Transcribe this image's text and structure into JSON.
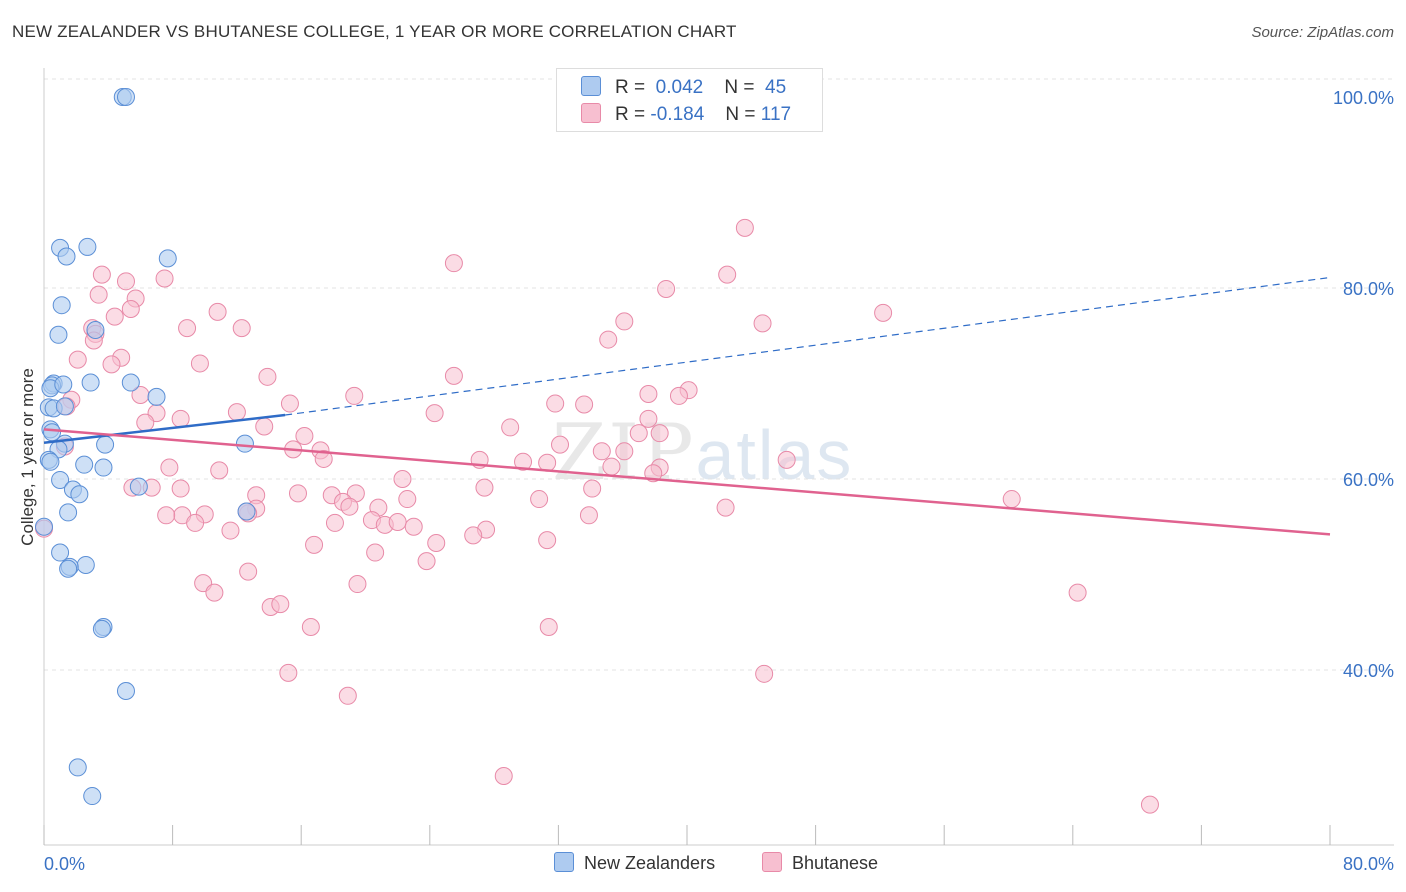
{
  "title": "NEW ZEALANDER VS BHUTANESE COLLEGE, 1 YEAR OR MORE CORRELATION CHART",
  "source": "Source: ZipAtlas.com",
  "watermark": {
    "zip": "ZIP",
    "atlas": "atlas"
  },
  "legend": [
    {
      "r_label": "R =",
      "r_value": "0.042",
      "n_label": "N =",
      "n_value": "45"
    },
    {
      "r_label": "R =",
      "r_value": "-0.184",
      "n_label": "N =",
      "n_value": "117"
    }
  ],
  "bottom_legend": {
    "series1": "New Zealanders",
    "series2": "Bhutanese"
  },
  "colors": {
    "blue_fill": "#aecbf0",
    "blue_stroke": "#5b8fd6",
    "blue_line": "#2f6cc7",
    "pink_fill": "#f7bfd0",
    "pink_stroke": "#e88aa8",
    "pink_line": "#e0628f",
    "axis_text": "#3a72c4"
  },
  "chart_data": {
    "type": "scatter",
    "title": "NEW ZEALANDER VS BHUTANESE COLLEGE, 1 YEAR OR MORE CORRELATION CHART",
    "xlabel": "",
    "ylabel": "College, 1 year or more",
    "xlim": [
      0,
      80
    ],
    "ylim": [
      22,
      102
    ],
    "x_tick_labels": [
      "0.0%",
      "80.0%"
    ],
    "y_tick_values": [
      40,
      60,
      80,
      100
    ],
    "y_tick_labels": [
      "40.0%",
      "60.0%",
      "80.0%",
      "100.0%"
    ],
    "series": [
      {
        "name": "New Zealanders",
        "R": 0.042,
        "N": 45,
        "trend": {
          "solid_x": [
            0,
            15
          ],
          "solid_y": [
            63.8,
            66.7
          ],
          "dashed_x": [
            15,
            80
          ],
          "dashed_y": [
            66.7,
            81.1
          ]
        },
        "points": [
          [
            4.9,
            100
          ],
          [
            5.1,
            100
          ],
          [
            1.0,
            84.2
          ],
          [
            2.7,
            84.3
          ],
          [
            1.4,
            83.3
          ],
          [
            7.7,
            83.1
          ],
          [
            1.1,
            78.2
          ],
          [
            0.9,
            75.1
          ],
          [
            3.2,
            75.6
          ],
          [
            0.6,
            70.0
          ],
          [
            0.5,
            69.8
          ],
          [
            0.4,
            69.5
          ],
          [
            1.2,
            69.9
          ],
          [
            2.9,
            70.1
          ],
          [
            5.4,
            70.1
          ],
          [
            7.0,
            68.6
          ],
          [
            0.3,
            67.5
          ],
          [
            0.6,
            67.4
          ],
          [
            1.3,
            67.6
          ],
          [
            0.4,
            65.2
          ],
          [
            0.5,
            64.9
          ],
          [
            1.3,
            63.7
          ],
          [
            0.9,
            63.1
          ],
          [
            3.8,
            63.6
          ],
          [
            12.5,
            63.7
          ],
          [
            0.3,
            62.0
          ],
          [
            0.4,
            61.8
          ],
          [
            2.5,
            61.5
          ],
          [
            3.7,
            61.2
          ],
          [
            1.0,
            59.9
          ],
          [
            5.9,
            59.2
          ],
          [
            1.8,
            58.9
          ],
          [
            2.2,
            58.4
          ],
          [
            1.5,
            56.5
          ],
          [
            12.6,
            56.6
          ],
          [
            1.0,
            52.3
          ],
          [
            2.6,
            51.0
          ],
          [
            1.6,
            50.8
          ],
          [
            1.5,
            50.6
          ],
          [
            3.7,
            44.5
          ],
          [
            3.6,
            44.3
          ],
          [
            5.1,
            37.8
          ],
          [
            2.1,
            29.8
          ],
          [
            3.0,
            26.8
          ],
          [
            0.0,
            55.0
          ]
        ]
      },
      {
        "name": "Bhutanese",
        "R": -0.184,
        "N": 117,
        "trend": {
          "x": [
            0,
            80
          ],
          "y": [
            65.2,
            54.2
          ]
        },
        "points": [
          [
            43.6,
            86.3
          ],
          [
            25.5,
            82.6
          ],
          [
            42.5,
            81.4
          ],
          [
            3.6,
            81.4
          ],
          [
            5.1,
            80.7
          ],
          [
            7.5,
            81.0
          ],
          [
            38.7,
            79.9
          ],
          [
            3.4,
            79.3
          ],
          [
            5.7,
            78.9
          ],
          [
            10.8,
            77.5
          ],
          [
            5.4,
            77.8
          ],
          [
            4.4,
            77.0
          ],
          [
            52.2,
            77.4
          ],
          [
            36.1,
            76.5
          ],
          [
            44.7,
            76.3
          ],
          [
            8.9,
            75.8
          ],
          [
            12.3,
            75.8
          ],
          [
            3.0,
            75.8
          ],
          [
            3.2,
            75.2
          ],
          [
            3.1,
            74.5
          ],
          [
            35.1,
            74.6
          ],
          [
            4.8,
            72.7
          ],
          [
            2.1,
            72.5
          ],
          [
            4.2,
            72.0
          ],
          [
            9.7,
            72.1
          ],
          [
            13.9,
            70.7
          ],
          [
            25.5,
            70.8
          ],
          [
            40.1,
            69.3
          ],
          [
            6.0,
            68.8
          ],
          [
            1.7,
            68.3
          ],
          [
            19.3,
            68.7
          ],
          [
            37.6,
            68.9
          ],
          [
            39.5,
            68.7
          ],
          [
            1.4,
            67.6
          ],
          [
            15.3,
            67.9
          ],
          [
            31.8,
            67.9
          ],
          [
            33.6,
            67.8
          ],
          [
            12.0,
            67.0
          ],
          [
            24.3,
            66.9
          ],
          [
            7.0,
            66.9
          ],
          [
            8.5,
            66.3
          ],
          [
            37.6,
            66.3
          ],
          [
            6.3,
            65.9
          ],
          [
            13.7,
            65.5
          ],
          [
            29.0,
            65.4
          ],
          [
            38.3,
            64.8
          ],
          [
            37.0,
            64.8
          ],
          [
            16.2,
            64.5
          ],
          [
            32.1,
            63.6
          ],
          [
            1.3,
            63.4
          ],
          [
            15.5,
            63.1
          ],
          [
            17.2,
            63.0
          ],
          [
            34.7,
            62.9
          ],
          [
            36.1,
            62.9
          ],
          [
            17.4,
            62.1
          ],
          [
            27.1,
            62.0
          ],
          [
            29.8,
            61.8
          ],
          [
            31.3,
            61.7
          ],
          [
            46.2,
            62.0
          ],
          [
            7.8,
            61.2
          ],
          [
            35.3,
            61.3
          ],
          [
            38.3,
            61.2
          ],
          [
            10.9,
            60.9
          ],
          [
            37.9,
            60.6
          ],
          [
            22.3,
            60.0
          ],
          [
            6.7,
            59.1
          ],
          [
            8.5,
            59.0
          ],
          [
            34.1,
            59.0
          ],
          [
            27.4,
            59.1
          ],
          [
            15.8,
            58.5
          ],
          [
            13.2,
            58.3
          ],
          [
            19.4,
            58.5
          ],
          [
            22.6,
            57.9
          ],
          [
            17.9,
            58.3
          ],
          [
            30.8,
            57.9
          ],
          [
            18.6,
            57.6
          ],
          [
            60.2,
            57.9
          ],
          [
            20.8,
            57.0
          ],
          [
            19.0,
            57.1
          ],
          [
            13.2,
            56.9
          ],
          [
            42.4,
            57.0
          ],
          [
            8.6,
            56.2
          ],
          [
            10.0,
            56.3
          ],
          [
            33.9,
            56.2
          ],
          [
            12.7,
            56.4
          ],
          [
            20.4,
            55.7
          ],
          [
            21.2,
            55.2
          ],
          [
            22.0,
            55.5
          ],
          [
            9.4,
            55.4
          ],
          [
            18.1,
            55.4
          ],
          [
            11.6,
            54.6
          ],
          [
            27.5,
            54.7
          ],
          [
            26.7,
            54.1
          ],
          [
            31.3,
            53.6
          ],
          [
            24.4,
            53.3
          ],
          [
            16.8,
            53.1
          ],
          [
            20.6,
            52.3
          ],
          [
            23.8,
            51.4
          ],
          [
            12.7,
            50.3
          ],
          [
            9.9,
            49.1
          ],
          [
            19.5,
            49.0
          ],
          [
            10.6,
            48.1
          ],
          [
            64.3,
            48.1
          ],
          [
            14.1,
            46.6
          ],
          [
            14.7,
            46.9
          ],
          [
            16.6,
            44.5
          ],
          [
            31.4,
            44.5
          ],
          [
            15.2,
            39.7
          ],
          [
            44.8,
            39.6
          ],
          [
            18.9,
            37.3
          ],
          [
            28.6,
            28.9
          ],
          [
            68.8,
            25.9
          ],
          [
            0.0,
            54.8
          ],
          [
            12.6,
            56.6
          ],
          [
            5.5,
            59.1
          ],
          [
            7.6,
            56.2
          ],
          [
            23.0,
            55.0
          ]
        ]
      }
    ]
  }
}
